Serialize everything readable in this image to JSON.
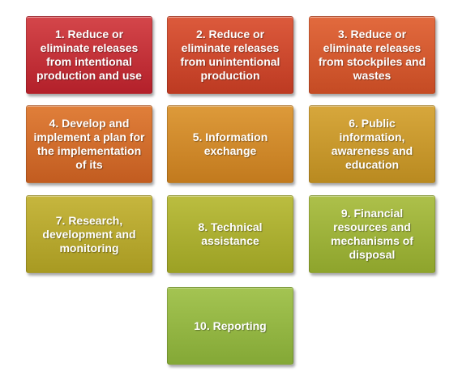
{
  "boxes": [
    {
      "label": "1. Reduce or eliminate releases from intentional production and use",
      "color_top": "#d4464a",
      "color_bottom": "#b3202a"
    },
    {
      "label": "2. Reduce or eliminate releases from unintentional production",
      "color_top": "#dc5a3c",
      "color_bottom": "#bd3a22"
    },
    {
      "label": "3. Reduce or eliminate releases from stockpiles and wastes",
      "color_top": "#e26a3e",
      "color_bottom": "#c54b24"
    },
    {
      "label": "4. Develop and implement a plan for the implementation of its",
      "color_top": "#e07f3a",
      "color_bottom": "#c25c20"
    },
    {
      "label": "5. Information exchange",
      "color_top": "#dd9a3a",
      "color_bottom": "#c27a1e"
    },
    {
      "label": "6. Public information, awareness and education",
      "color_top": "#d7a73c",
      "color_bottom": "#b98a20"
    },
    {
      "label": "7. Research, development and monitoring",
      "color_top": "#c6b63e",
      "color_bottom": "#a89a22"
    },
    {
      "label": "8. Technical assistance",
      "color_top": "#bbbd40",
      "color_bottom": "#9ca124"
    },
    {
      "label": "9. Financial resources and mechanisms of disposal",
      "color_top": "#adc04a",
      "color_bottom": "#8ea42c"
    },
    {
      "label": "10. Reporting",
      "color_top": "#a4c452",
      "color_bottom": "#84a836"
    }
  ]
}
